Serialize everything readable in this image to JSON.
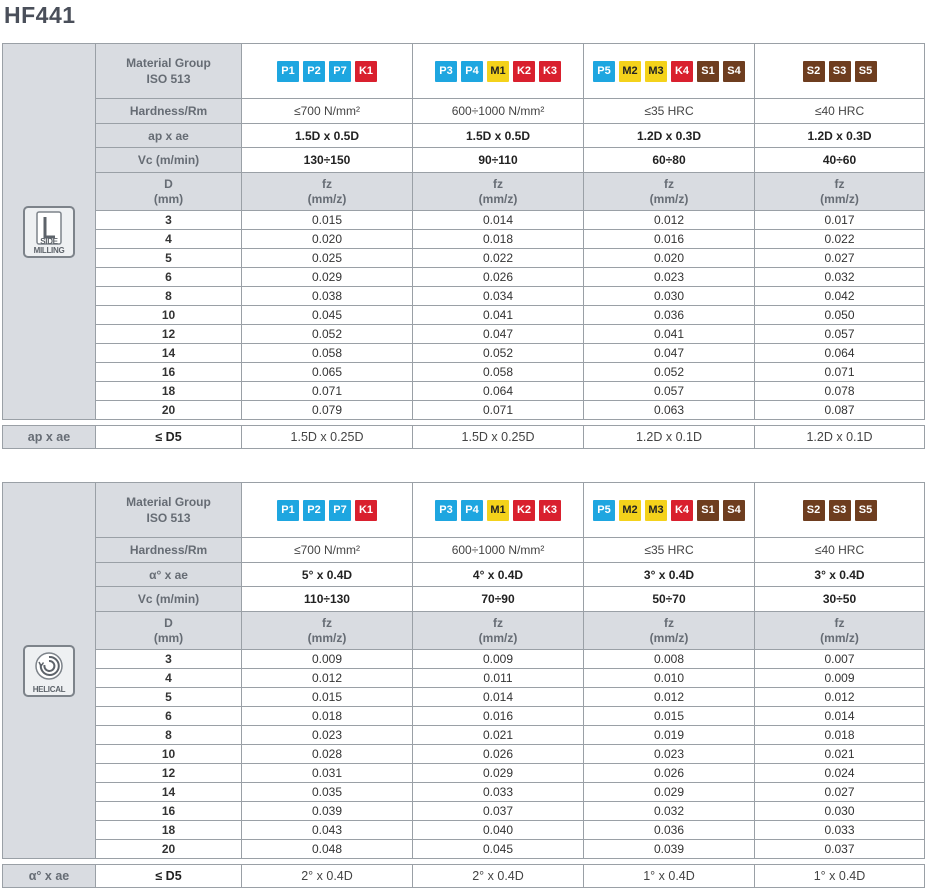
{
  "title": "HF441",
  "sections": [
    {
      "icon_name": "side-milling-icon",
      "icon_label": "SIDE MILLING",
      "icon_letter": "L",
      "material_label_1": "Material Group",
      "material_label_2": "ISO 513",
      "hardness_label": "Hardness/Rm",
      "param_label": "ap x ae",
      "vc_label": "Vc (m/min)",
      "d_label_1": "D",
      "d_label_2": "(mm)",
      "fz_label_1": "fz",
      "fz_label_2": "(mm/z)",
      "groups": [
        {
          "chips": [
            {
              "t": "P1",
              "c": "blue"
            },
            {
              "t": "P2",
              "c": "blue"
            },
            {
              "t": "P7",
              "c": "blue"
            },
            {
              "t": "K1",
              "c": "red"
            }
          ],
          "hardness": "≤700 N/mm²",
          "param": "1.5D x 0.5D",
          "vc": "130÷150"
        },
        {
          "chips": [
            {
              "t": "P3",
              "c": "blue"
            },
            {
              "t": "P4",
              "c": "blue"
            },
            {
              "t": "M1",
              "c": "yellow"
            },
            {
              "t": "K2",
              "c": "red"
            },
            {
              "t": "K3",
              "c": "red"
            }
          ],
          "hardness": "600÷1000 N/mm²",
          "param": "1.5D x 0.5D",
          "vc": "90÷110"
        },
        {
          "chips": [
            {
              "t": "P5",
              "c": "blue"
            },
            {
              "t": "M2",
              "c": "yellow"
            },
            {
              "t": "M3",
              "c": "yellow"
            },
            {
              "t": "K4",
              "c": "red"
            },
            {
              "t": "S1",
              "c": "brown"
            },
            {
              "t": "S4",
              "c": "brown"
            }
          ],
          "hardness": "≤35 HRC",
          "param": "1.2D x 0.3D",
          "vc": "60÷80"
        },
        {
          "chips": [
            {
              "t": "S2",
              "c": "brown"
            },
            {
              "t": "S3",
              "c": "brown"
            },
            {
              "t": "S5",
              "c": "brown"
            }
          ],
          "hardness": "≤40 HRC",
          "param": "1.2D x 0.3D",
          "vc": "40÷60"
        }
      ],
      "rows": [
        {
          "d": "3",
          "v": [
            "0.015",
            "0.014",
            "0.012",
            "0.017"
          ]
        },
        {
          "d": "4",
          "v": [
            "0.020",
            "0.018",
            "0.016",
            "0.022"
          ]
        },
        {
          "d": "5",
          "v": [
            "0.025",
            "0.022",
            "0.020",
            "0.027"
          ]
        },
        {
          "d": "6",
          "v": [
            "0.029",
            "0.026",
            "0.023",
            "0.032"
          ]
        },
        {
          "d": "8",
          "v": [
            "0.038",
            "0.034",
            "0.030",
            "0.042"
          ]
        },
        {
          "d": "10",
          "v": [
            "0.045",
            "0.041",
            "0.036",
            "0.050"
          ]
        },
        {
          "d": "12",
          "v": [
            "0.052",
            "0.047",
            "0.041",
            "0.057"
          ]
        },
        {
          "d": "14",
          "v": [
            "0.058",
            "0.052",
            "0.047",
            "0.064"
          ]
        },
        {
          "d": "16",
          "v": [
            "0.065",
            "0.058",
            "0.052",
            "0.071"
          ]
        },
        {
          "d": "18",
          "v": [
            "0.071",
            "0.064",
            "0.057",
            "0.078"
          ]
        },
        {
          "d": "20",
          "v": [
            "0.079",
            "0.071",
            "0.063",
            "0.087"
          ]
        }
      ],
      "footer": {
        "label": "ap x ae",
        "cond": "≤ D5",
        "values": [
          "1.5D x 0.25D",
          "1.5D x 0.25D",
          "1.2D x 0.1D",
          "1.2D x 0.1D"
        ]
      }
    },
    {
      "icon_name": "helical-icon",
      "icon_label": "HELICAL",
      "icon_letter": "",
      "material_label_1": "Material Group",
      "material_label_2": "ISO 513",
      "hardness_label": "Hardness/Rm",
      "param_label": "α° x ae",
      "vc_label": "Vc (m/min)",
      "d_label_1": "D",
      "d_label_2": "(mm)",
      "fz_label_1": "fz",
      "fz_label_2": "(mm/z)",
      "groups": [
        {
          "chips": [
            {
              "t": "P1",
              "c": "blue"
            },
            {
              "t": "P2",
              "c": "blue"
            },
            {
              "t": "P7",
              "c": "blue"
            },
            {
              "t": "K1",
              "c": "red"
            }
          ],
          "hardness": "≤700 N/mm²",
          "param": "5° x 0.4D",
          "vc": "110÷130"
        },
        {
          "chips": [
            {
              "t": "P3",
              "c": "blue"
            },
            {
              "t": "P4",
              "c": "blue"
            },
            {
              "t": "M1",
              "c": "yellow"
            },
            {
              "t": "K2",
              "c": "red"
            },
            {
              "t": "K3",
              "c": "red"
            }
          ],
          "hardness": "600÷1000 N/mm²",
          "param": "4° x 0.4D",
          "vc": "70÷90"
        },
        {
          "chips": [
            {
              "t": "P5",
              "c": "blue"
            },
            {
              "t": "M2",
              "c": "yellow"
            },
            {
              "t": "M3",
              "c": "yellow"
            },
            {
              "t": "K4",
              "c": "red"
            },
            {
              "t": "S1",
              "c": "brown"
            },
            {
              "t": "S4",
              "c": "brown"
            }
          ],
          "hardness": "≤35 HRC",
          "param": "3° x 0.4D",
          "vc": "50÷70"
        },
        {
          "chips": [
            {
              "t": "S2",
              "c": "brown"
            },
            {
              "t": "S3",
              "c": "brown"
            },
            {
              "t": "S5",
              "c": "brown"
            }
          ],
          "hardness": "≤40 HRC",
          "param": "3° x 0.4D",
          "vc": "30÷50"
        }
      ],
      "rows": [
        {
          "d": "3",
          "v": [
            "0.009",
            "0.009",
            "0.008",
            "0.007"
          ]
        },
        {
          "d": "4",
          "v": [
            "0.012",
            "0.011",
            "0.010",
            "0.009"
          ]
        },
        {
          "d": "5",
          "v": [
            "0.015",
            "0.014",
            "0.012",
            "0.012"
          ]
        },
        {
          "d": "6",
          "v": [
            "0.018",
            "0.016",
            "0.015",
            "0.014"
          ]
        },
        {
          "d": "8",
          "v": [
            "0.023",
            "0.021",
            "0.019",
            "0.018"
          ]
        },
        {
          "d": "10",
          "v": [
            "0.028",
            "0.026",
            "0.023",
            "0.021"
          ]
        },
        {
          "d": "12",
          "v": [
            "0.031",
            "0.029",
            "0.026",
            "0.024"
          ]
        },
        {
          "d": "14",
          "v": [
            "0.035",
            "0.033",
            "0.029",
            "0.027"
          ]
        },
        {
          "d": "16",
          "v": [
            "0.039",
            "0.037",
            "0.032",
            "0.030"
          ]
        },
        {
          "d": "18",
          "v": [
            "0.043",
            "0.040",
            "0.036",
            "0.033"
          ]
        },
        {
          "d": "20",
          "v": [
            "0.048",
            "0.045",
            "0.039",
            "0.037"
          ]
        }
      ],
      "footer": {
        "label": "α° x ae",
        "cond": "≤ D5",
        "values": [
          "2° x 0.4D",
          "2° x 0.4D",
          "1° x 0.4D",
          "1° x 0.4D"
        ]
      }
    }
  ]
}
